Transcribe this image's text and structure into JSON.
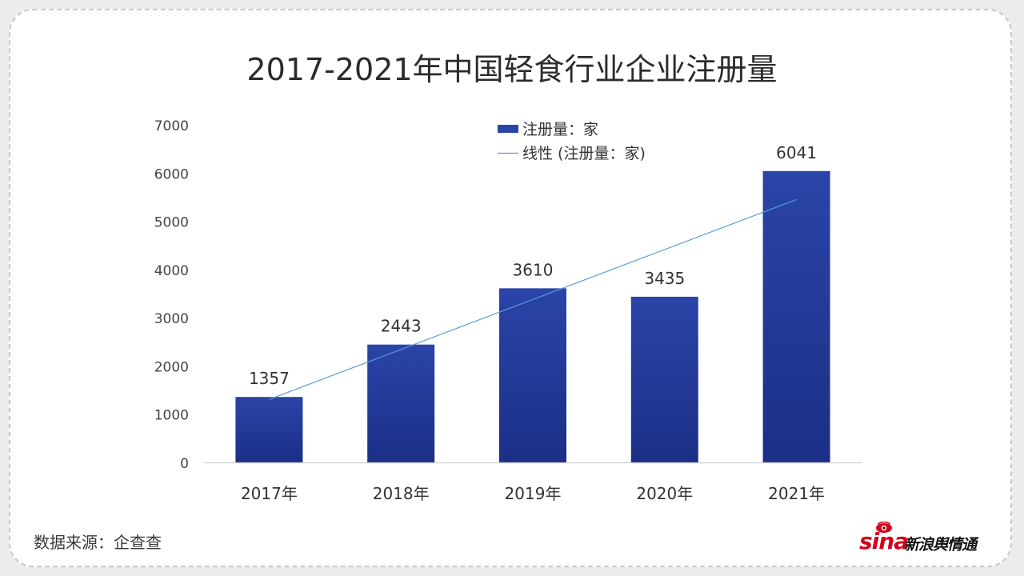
{
  "chart_data": {
    "type": "bar",
    "title": "2017-2021年中国轻食行业企业注册量",
    "categories": [
      "2017年",
      "2018年",
      "2019年",
      "2020年",
      "2021年"
    ],
    "series": [
      {
        "name": "注册量：家",
        "values": [
          1357,
          2443,
          3610,
          3435,
          6041
        ]
      }
    ],
    "trendline": {
      "name": "线性 (注册量：家)",
      "type": "linear"
    },
    "data_labels": [
      "1357",
      "2443",
      "3610",
      "3435",
      "6041"
    ],
    "yticks": [
      "0",
      "1000",
      "2000",
      "3000",
      "4000",
      "5000",
      "6000",
      "7000"
    ],
    "ylim": [
      0,
      7000
    ],
    "xlabel": "",
    "ylabel": "",
    "grid": false,
    "legend_position": "top-right",
    "colors": {
      "bar_top": "#2a44a8",
      "bar_bottom": "#1b2f86",
      "trendline": "#5b9bd5",
      "axis": "#d0d0d0",
      "text": "#333333"
    }
  },
  "footer": {
    "source": "数据来源：企查查"
  },
  "logo": {
    "brand": "sina",
    "brand_cn": "新浪舆情通"
  }
}
